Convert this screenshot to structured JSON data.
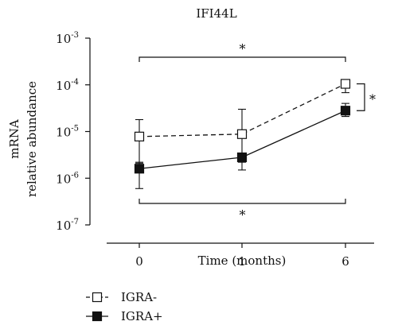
{
  "chart_data": {
    "type": "line",
    "title": "IFI44L",
    "xlabel": "Time (months)",
    "ylabel_lines": [
      "mRNA",
      "relative abundance"
    ],
    "x_categories": [
      "0",
      "1",
      "6"
    ],
    "y_scale": "log",
    "y_ticks": [
      {
        "base": "10",
        "exp": "-3",
        "value": 0.001
      },
      {
        "base": "10",
        "exp": "-4",
        "value": 0.0001
      },
      {
        "base": "10",
        "exp": "-5",
        "value": 1e-05
      },
      {
        "base": "10",
        "exp": "-6",
        "value": 1e-06
      },
      {
        "base": "10",
        "exp": "-7",
        "value": 1e-07
      }
    ],
    "ylim": [
      1e-07,
      0.001
    ],
    "grid": false,
    "legend_position": "bottom-left",
    "series": [
      {
        "name": "IGRA-",
        "marker": "open-square",
        "line_style": "dashed",
        "color": "#111111",
        "values": [
          7.8e-06,
          8.8e-06,
          0.000105
        ],
        "error_low": [
          2.1e-06,
          2.2e-06,
          6.8e-05
        ],
        "error_high": [
          1.8e-05,
          3e-05,
          0.00012
        ]
      },
      {
        "name": "IGRA+",
        "marker": "filled-square",
        "line_style": "solid",
        "color": "#111111",
        "values": [
          1.6e-06,
          2.8e-06,
          2.8e-05
        ],
        "error_low": [
          6e-07,
          1.5e-06,
          2.1e-05
        ],
        "error_high": [
          2.2e-06,
          3.2e-06,
          4e-05
        ]
      }
    ],
    "annotations": [
      {
        "kind": "bracket",
        "text": "*",
        "between_x": [
          "0",
          "6"
        ],
        "location": "top"
      },
      {
        "kind": "bracket",
        "text": "*",
        "between_x": [
          "0",
          "6"
        ],
        "location": "bottom"
      },
      {
        "kind": "vertical-bracket",
        "text": "*",
        "at_x": "6",
        "between_series": [
          "IGRA-",
          "IGRA+"
        ]
      }
    ]
  }
}
